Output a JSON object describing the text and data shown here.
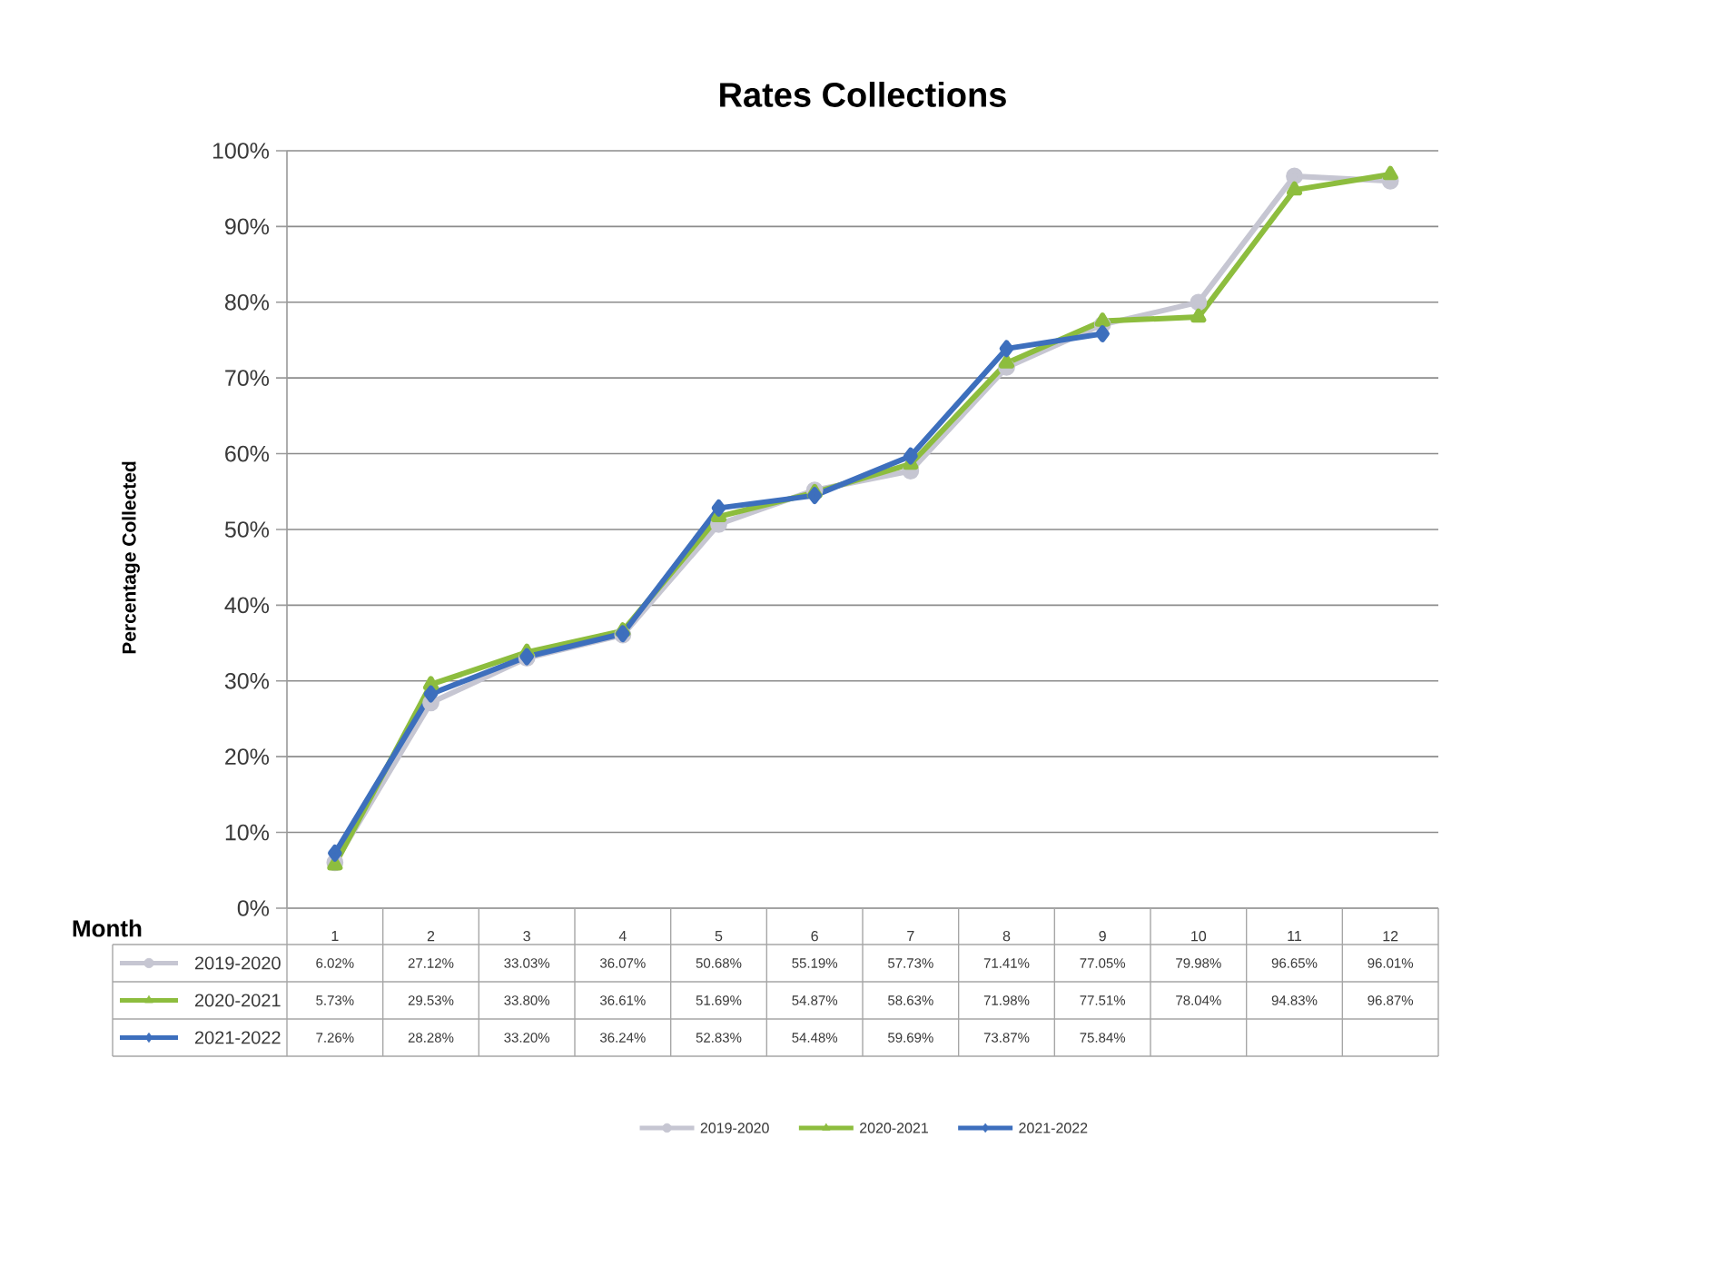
{
  "chart_data": {
    "type": "line",
    "title": "Rates Collections",
    "xlabel": "Month",
    "ylabel": "Percentage Collected",
    "categories": [
      "1",
      "2",
      "3",
      "4",
      "5",
      "6",
      "7",
      "8",
      "9",
      "10",
      "11",
      "12"
    ],
    "ylim": [
      0,
      100
    ],
    "yticks": [
      {
        "value": 0,
        "label": "0%"
      },
      {
        "value": 10,
        "label": "10%"
      },
      {
        "value": 20,
        "label": "20%"
      },
      {
        "value": 30,
        "label": "30%"
      },
      {
        "value": 40,
        "label": "40%"
      },
      {
        "value": 50,
        "label": "50%"
      },
      {
        "value": 60,
        "label": "60%"
      },
      {
        "value": 70,
        "label": "70%"
      },
      {
        "value": 80,
        "label": "80%"
      },
      {
        "value": 90,
        "label": "90%"
      },
      {
        "value": 100,
        "label": "100%"
      }
    ],
    "grid": "y",
    "legend": "bottom",
    "line_style": "solid",
    "series": [
      {
        "name": "2019-2020",
        "color": "#c6c6d2",
        "marker": "circle",
        "values": [
          6.02,
          27.12,
          33.03,
          36.07,
          50.68,
          55.19,
          57.73,
          71.41,
          77.05,
          79.98,
          96.65,
          96.01
        ],
        "value_labels": [
          "6.02%",
          "27.12%",
          "33.03%",
          "36.07%",
          "50.68%",
          "55.19%",
          "57.73%",
          "71.41%",
          "77.05%",
          "79.98%",
          "96.65%",
          "96.01%"
        ]
      },
      {
        "name": "2020-2021",
        "color": "#8dbd3e",
        "marker": "triangle",
        "values": [
          5.73,
          29.53,
          33.8,
          36.61,
          51.69,
          54.87,
          58.63,
          71.98,
          77.51,
          78.04,
          94.83,
          96.87
        ],
        "value_labels": [
          "5.73%",
          "29.53%",
          "33.80%",
          "36.61%",
          "51.69%",
          "54.87%",
          "58.63%",
          "71.98%",
          "77.51%",
          "78.04%",
          "94.83%",
          "96.87%"
        ]
      },
      {
        "name": "2021-2022",
        "color": "#3d6fbd",
        "marker": "diamond",
        "values": [
          7.26,
          28.28,
          33.2,
          36.24,
          52.83,
          54.48,
          59.69,
          73.87,
          75.84,
          null,
          null,
          null
        ],
        "value_labels": [
          "7.26%",
          "28.28%",
          "33.20%",
          "36.24%",
          "52.83%",
          "54.48%",
          "59.69%",
          "73.87%",
          "75.84%",
          null,
          null,
          null
        ]
      }
    ]
  }
}
